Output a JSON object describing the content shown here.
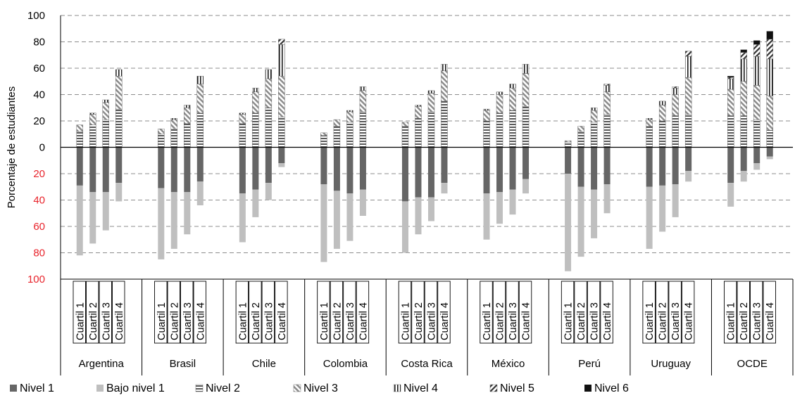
{
  "chart_data": {
    "type": "bar",
    "stacked": true,
    "diverging": true,
    "ylabel": "Porcentaje de estudiantes",
    "ylim": [
      -100,
      100
    ],
    "y_tick_labels": [
      {
        "value": 100,
        "label": "100",
        "color": "#000000"
      },
      {
        "value": 80,
        "label": "80",
        "color": "#000000"
      },
      {
        "value": 60,
        "label": "60",
        "color": "#000000"
      },
      {
        "value": 40,
        "label": "40",
        "color": "#000000"
      },
      {
        "value": 20,
        "label": "20",
        "color": "#000000"
      },
      {
        "value": 0,
        "label": "0",
        "color": "#000000"
      },
      {
        "value": -20,
        "label": "20",
        "color": "#e8242c"
      },
      {
        "value": -40,
        "label": "40",
        "color": "#e8242c"
      },
      {
        "value": -60,
        "label": "60",
        "color": "#e8242c"
      },
      {
        "value": -80,
        "label": "80",
        "color": "#e8242c"
      },
      {
        "value": -100,
        "label": "100",
        "color": "#e8242c"
      }
    ],
    "grid": "horizontal-dashed",
    "legend_position": "bottom",
    "sub_categories": [
      "Cuartil 1",
      "Cuartil 2",
      "Cuartil 3",
      "Cuartil 4"
    ],
    "groups": [
      "Argentina",
      "Brasil",
      "Chile",
      "Colombia",
      "Costa Rica",
      "México",
      "Perú",
      "Uruguay",
      "OCDE"
    ],
    "legend": [
      {
        "key": "n1",
        "label": "Nivel 1"
      },
      {
        "key": "bn1",
        "label": "Bajo nivel 1"
      },
      {
        "key": "n2",
        "label": "Nivel 2"
      },
      {
        "key": "n3",
        "label": "Nivel 3"
      },
      {
        "key": "n4",
        "label": "Nivel 4"
      },
      {
        "key": "n5",
        "label": "Nivel 5"
      },
      {
        "key": "n6",
        "label": "Nivel 6"
      }
    ],
    "data": [
      [
        [
          29,
          53,
          12,
          5,
          0,
          0,
          0
        ],
        [
          34,
          39,
          17,
          8,
          1,
          0,
          0
        ],
        [
          34,
          29,
          21,
          13,
          2,
          0,
          0
        ],
        [
          27,
          14,
          29,
          25,
          5,
          0,
          0
        ]
      ],
      [
        [
          31,
          54,
          10,
          4,
          0,
          0,
          0
        ],
        [
          34,
          43,
          14,
          7,
          1,
          0,
          0
        ],
        [
          34,
          32,
          18,
          12,
          2,
          0,
          0
        ],
        [
          26,
          18,
          26,
          22,
          6,
          0,
          0
        ]
      ],
      [
        [
          35,
          37,
          18,
          7,
          1,
          0,
          0
        ],
        [
          32,
          21,
          26,
          16,
          3,
          0,
          0
        ],
        [
          27,
          13,
          30,
          22,
          7,
          0,
          0
        ],
        [
          12,
          3,
          23,
          31,
          24,
          4,
          0
        ]
      ],
      [
        [
          28,
          59,
          9,
          2,
          0,
          0,
          0
        ],
        [
          33,
          44,
          16,
          5,
          0,
          0,
          0
        ],
        [
          35,
          36,
          19,
          8,
          1,
          0,
          0
        ],
        [
          32,
          20,
          27,
          16,
          3,
          0,
          0
        ]
      ],
      [
        [
          41,
          39,
          16,
          3,
          0,
          0,
          0
        ],
        [
          38,
          28,
          22,
          9,
          1,
          0,
          0
        ],
        [
          38,
          18,
          27,
          14,
          2,
          0,
          0
        ],
        [
          27,
          8,
          35,
          23,
          5,
          0,
          0
        ]
      ],
      [
        [
          35,
          35,
          20,
          8,
          1,
          0,
          0
        ],
        [
          34,
          24,
          26,
          14,
          2,
          0,
          0
        ],
        [
          32,
          19,
          28,
          17,
          3,
          0,
          0
        ],
        [
          24,
          11,
          31,
          25,
          7,
          0,
          0
        ]
      ],
      [
        [
          20,
          74,
          4,
          1,
          0,
          0,
          0
        ],
        [
          30,
          53,
          12,
          4,
          0,
          0,
          0
        ],
        [
          32,
          37,
          19,
          9,
          2,
          0,
          0
        ],
        [
          28,
          22,
          25,
          17,
          5,
          1,
          0
        ]
      ],
      [
        [
          30,
          47,
          16,
          5,
          1,
          0,
          0
        ],
        [
          29,
          35,
          20,
          12,
          3,
          0,
          0
        ],
        [
          28,
          25,
          24,
          16,
          5,
          1,
          0
        ],
        [
          18,
          8,
          25,
          28,
          16,
          4,
          0
        ]
      ],
      [
        [
          27,
          18,
          24,
          20,
          8,
          1,
          1
        ],
        [
          18,
          8,
          24,
          26,
          17,
          5,
          2
        ],
        [
          12,
          5,
          21,
          26,
          22,
          9,
          3
        ],
        [
          7,
          2,
          13,
          26,
          28,
          15,
          6
        ]
      ]
    ],
    "series_colors": {
      "n1": "#666666",
      "bn1": "#bfbfbf",
      "n2": "#595959",
      "n3": "#8c8c8c",
      "n4": "#1a1a1a",
      "n5": "#333333",
      "n6": "#111111"
    }
  }
}
